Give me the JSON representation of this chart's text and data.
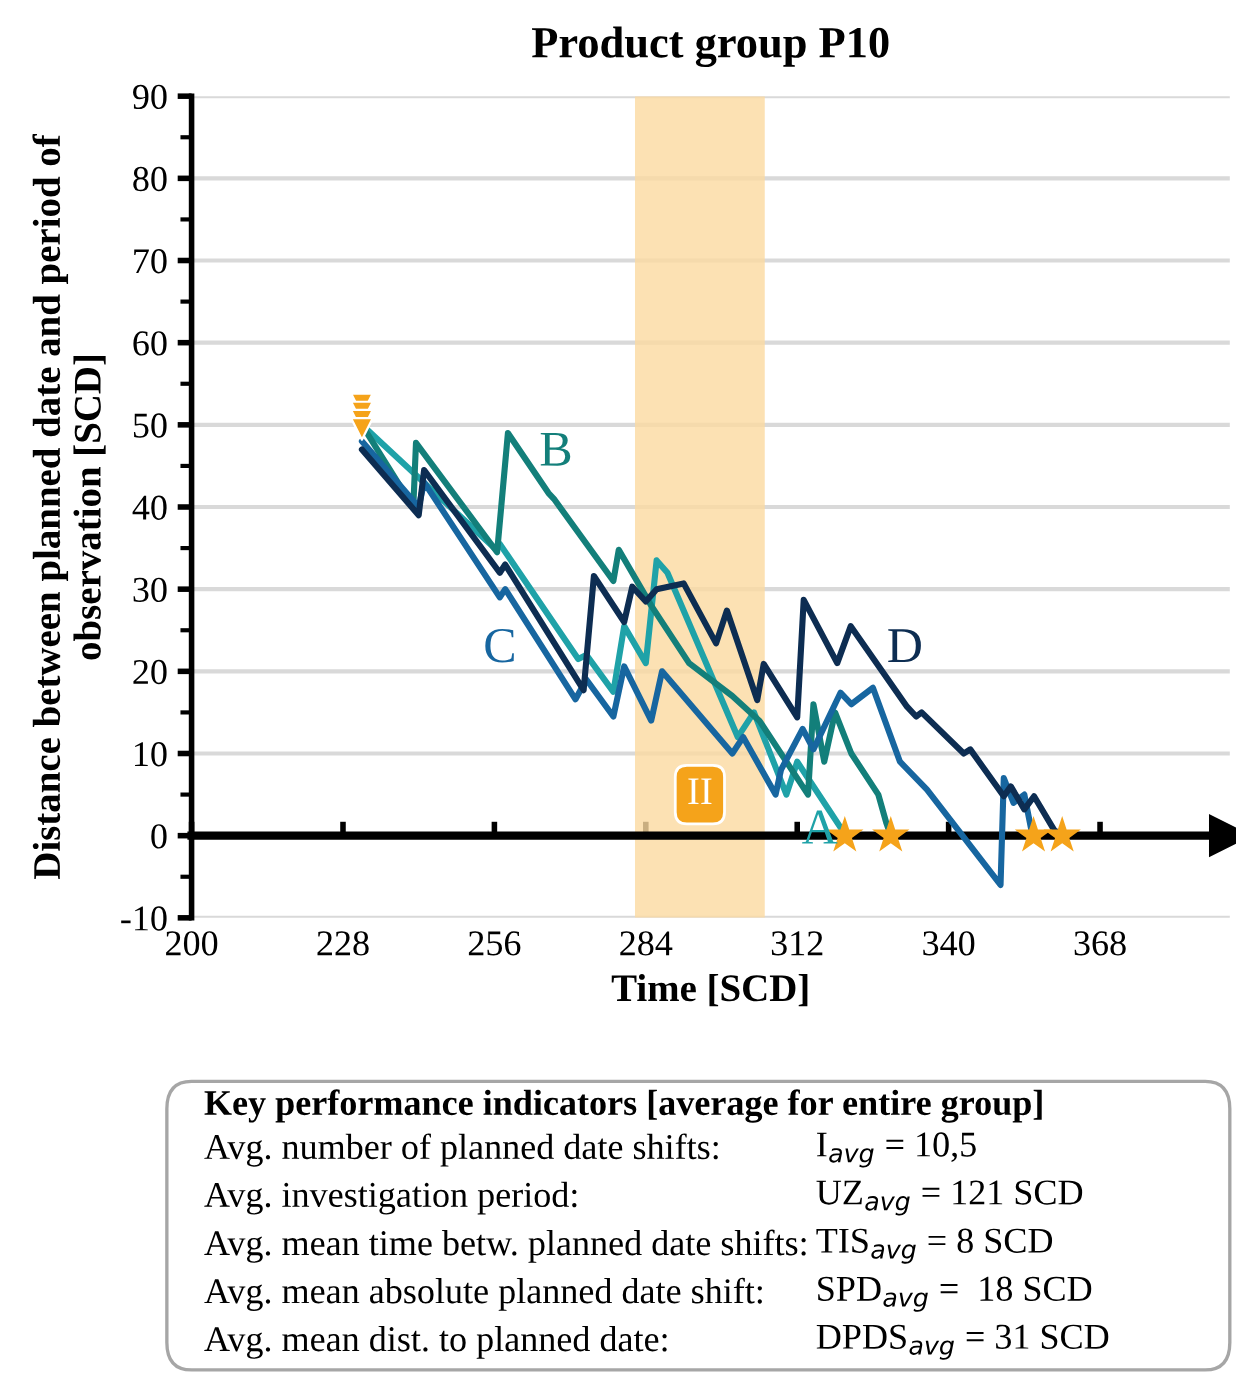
{
  "chart_data": {
    "type": "line",
    "title": "Product group P10",
    "xlabel": "Time [SCD]",
    "ylabel": "Distance between planned date and period of\nobservation [SCD]",
    "xlim": [
      200,
      392
    ],
    "xticks": [
      200,
      228,
      256,
      284,
      312,
      340,
      368
    ],
    "ylim": [
      -10,
      90
    ],
    "yticks": [
      -10,
      0,
      10,
      20,
      30,
      40,
      50,
      60,
      70,
      80,
      90
    ],
    "grid": "y",
    "line_style": "solid",
    "series": [
      {
        "name": "A",
        "color": "#1fa2a8",
        "x": [
          231.5,
          256,
          257,
          271.5,
          273,
          278,
          280,
          284,
          286,
          288,
          301,
          304,
          310,
          312,
          318,
          321
        ],
        "values": [
          50,
          35,
          35.5,
          21.5,
          22,
          17.5,
          25.5,
          21,
          33.5,
          32,
          12,
          15,
          5,
          9,
          3,
          0
        ]
      },
      {
        "name": "B",
        "color": "#137f7a",
        "x": [
          231.5,
          241,
          241.5,
          256.5,
          258.5,
          266,
          267,
          278,
          279,
          285,
          292,
          300,
          305,
          314,
          315,
          317,
          319,
          322,
          327,
          328.5,
          329.3
        ],
        "values": [
          50,
          40,
          47.8,
          34.5,
          49,
          41.7,
          41,
          31,
          34.8,
          28,
          21,
          17,
          14,
          5,
          16,
          9,
          15,
          10,
          5,
          1.5,
          0
        ]
      },
      {
        "name": "C",
        "color": "#1766a0",
        "x": [
          231.5,
          242,
          243,
          257,
          258,
          271,
          273,
          278,
          280,
          285,
          287,
          300,
          302,
          308,
          309,
          313,
          315,
          320,
          322,
          326,
          331,
          336,
          349.6,
          350.2,
          352,
          354,
          355.5
        ],
        "values": [
          48,
          40,
          43,
          29,
          30,
          16.6,
          19,
          14.5,
          20.6,
          14,
          20,
          10,
          12,
          5,
          8,
          13,
          10.5,
          17.4,
          16,
          18,
          9,
          5.6,
          -6,
          7,
          4,
          5,
          0
        ]
      },
      {
        "name": "D",
        "color": "#0d2d52",
        "x": [
          231.5,
          242,
          243,
          257,
          258,
          272.5,
          274.4,
          280,
          281.5,
          284,
          286,
          291,
          297,
          299,
          304.6,
          305.8,
          312,
          313.2,
          319.4,
          321.9,
          332.3,
          334,
          335,
          342.8,
          344,
          350.2,
          351.5,
          354,
          355.8,
          359.5,
          361
        ],
        "values": [
          47,
          39,
          44.5,
          32,
          33,
          17.7,
          31.6,
          26,
          30.3,
          28.5,
          30,
          30.7,
          23.4,
          27.4,
          16.5,
          20.9,
          14.4,
          28.7,
          21,
          25.5,
          15.7,
          14.5,
          15,
          10,
          10.5,
          4.8,
          6,
          3.2,
          4.8,
          0.7,
          0
        ]
      },
      {
        "type": "scatter",
        "marker": "star",
        "color": "#f5a31a",
        "x": [
          320.8,
          329.3,
          355.7,
          361
        ],
        "values": [
          0,
          0,
          0,
          0
        ]
      },
      {
        "type": "scatter",
        "marker": "triangle",
        "color": "#f5a31a",
        "x": [
          231.5,
          231.5,
          231.5,
          231.5
        ],
        "values": [
          52.5,
          51.5,
          50.5,
          49.5
        ]
      }
    ],
    "bands": [
      {
        "axis": "x",
        "from": 282,
        "to": 306,
        "color": "#fbd9a0",
        "label": "II"
      }
    ],
    "annotations": [
      "Key performance indicators [average for entire group]",
      "Avg. number of planned date shifts:",
      "I$_{avg}$ = 10,5",
      "Avg. investigation period:",
      "UZ$_{avg}$ = 121 SCD",
      "Avg. mean time betw. planned date shifts:",
      "TIS$_{avg}$ = 8 SCD",
      "Avg. mean absolute planned date shift:",
      "SPD$_{avg}$ =  18 SCD",
      "Avg. mean dist. to planned date:",
      "DPDS$_{avg}$ = 31 SCD"
    ]
  }
}
